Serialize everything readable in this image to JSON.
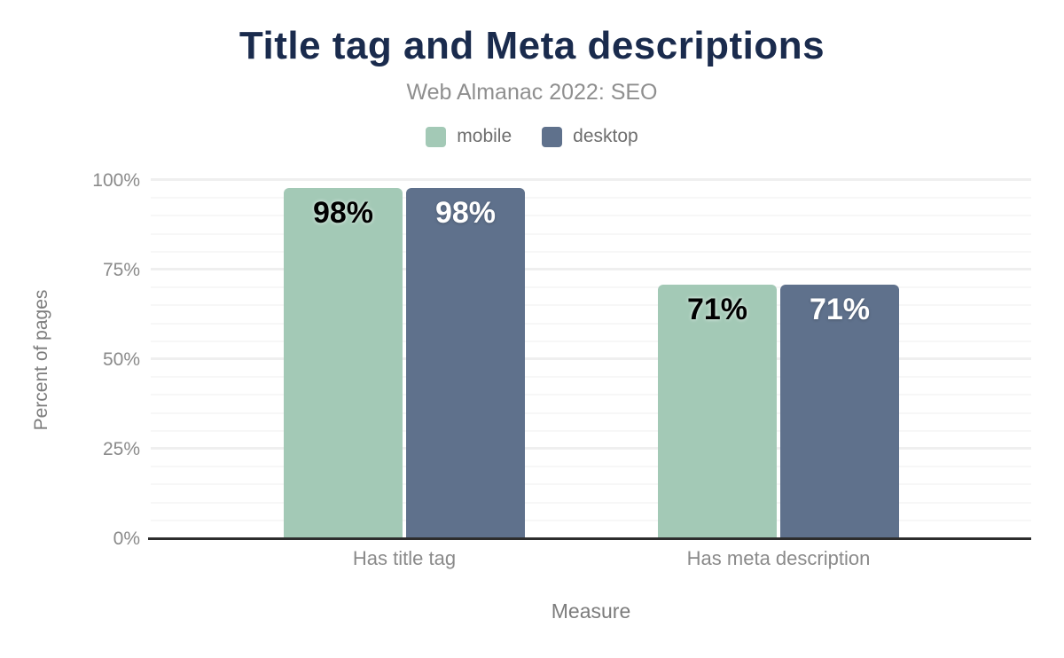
{
  "chart_data": {
    "type": "bar",
    "title": "Title tag and Meta descriptions",
    "subtitle": "Web Almanac 2022: SEO",
    "xlabel": "Measure",
    "ylabel": "Percent of pages",
    "categories": [
      "Has title tag",
      "Has meta description"
    ],
    "series": [
      {
        "name": "mobile",
        "color": "#a3c9b6",
        "label_color": "#000000",
        "values": [
          98,
          71
        ]
      },
      {
        "name": "desktop",
        "color": "#5f718c",
        "label_color": "#ffffff",
        "values": [
          98,
          71
        ]
      }
    ],
    "value_suffix": "%",
    "ylim": [
      0,
      100
    ],
    "yticks": [
      {
        "value": 0,
        "label": "0%"
      },
      {
        "value": 25,
        "label": "25%"
      },
      {
        "value": 50,
        "label": "50%"
      },
      {
        "value": 75,
        "label": "75%"
      },
      {
        "value": 100,
        "label": "100%"
      }
    ],
    "minor_grid_step_percent": 5,
    "grid": "on",
    "legend_position": "top-center",
    "styles": {
      "title_color": "#1a2b4d",
      "subtitle_color": "#8f8f8f",
      "legend_text_color": "#6e6e6e",
      "tick_text_color": "#8a8a8a",
      "category_text_color": "#8a8a8a",
      "axis_title_color": "#7c7c7c",
      "gridline_major_color": "#efefef",
      "gridline_minor_color": "#f7f7f7",
      "axis_line_color": "#2d2d2d",
      "background_color": "#ffffff"
    }
  }
}
